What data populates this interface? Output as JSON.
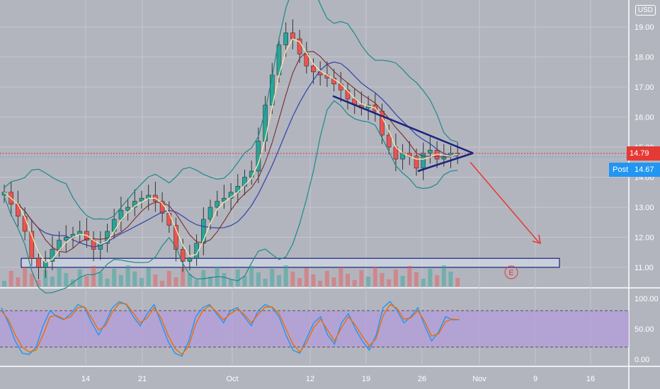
{
  "currency": "USD",
  "price_tags": {
    "last": "14.79",
    "post_label": "Post",
    "post_value": "14.67"
  },
  "earnings_marker": "E",
  "colors": {
    "background": "#b2b5be",
    "grid": "#c4c7ce",
    "bull": "#26a69a",
    "bear": "#ef5350",
    "bollinger": "#1b8a8a",
    "ma_fast": "#f3e5ab",
    "ma_slow": "#3949ab",
    "ma_mid": "#7a2e2e",
    "trendline": "#1a237e",
    "arrow": "#e53935",
    "stoch_band": "#b39ddb",
    "stoch_k": "#2196f3",
    "stoch_d": "#ef6c00",
    "last_price": "#e53935",
    "post_price": "#2196f3"
  },
  "chart_data": [
    {
      "type": "candlestick",
      "title": "",
      "ylabel": "",
      "ylim": [
        10.6,
        19.4
      ],
      "y_ticks": [
        "11.00",
        "12.00",
        "13.00",
        "14.00",
        "15.00",
        "16.00",
        "17.00",
        "18.00",
        "19.00"
      ],
      "x_ticks": [
        "14",
        "21",
        "Oct",
        "12",
        "19",
        "26",
        "Nov",
        "9",
        "16"
      ],
      "close_series": [
        13.5,
        13.1,
        12.7,
        12.2,
        11.3,
        11.0,
        11.2,
        11.6,
        11.9,
        12.0,
        12.1,
        12.2,
        11.9,
        11.6,
        11.8,
        12.2,
        12.6,
        12.9,
        13.0,
        13.2,
        13.3,
        13.4,
        13.2,
        12.8,
        12.4,
        11.6,
        11.2,
        11.3,
        11.8,
        12.6,
        13.0,
        13.2,
        13.3,
        13.5,
        13.7,
        14.0,
        14.2,
        15.2,
        16.4,
        17.4,
        18.4,
        18.8,
        18.6,
        18.1,
        17.7,
        17.5,
        17.4,
        17.3,
        17.1,
        16.9,
        16.6,
        16.4,
        16.3,
        16.4,
        16.2,
        15.4,
        15.0,
        14.6,
        14.8,
        14.7,
        14.3,
        14.8,
        14.9,
        14.6,
        14.7,
        14.8,
        14.79
      ],
      "key_levels": {
        "support_zone": [
          11.0,
          11.3
        ],
        "last_price": 14.79,
        "post_market_price": 14.67
      },
      "pattern": "symmetrical triangle",
      "arrow_target": 11.8,
      "legend": "none",
      "grid": true
    },
    {
      "type": "line",
      "title": "",
      "ylabel": "",
      "ylim": [
        -10,
        110
      ],
      "y_ticks": [
        "100.00",
        "50.00",
        "0.00"
      ],
      "band": [
        20,
        80
      ],
      "series": [
        {
          "values": [
            85,
            60,
            30,
            10,
            8,
            20,
            55,
            80,
            70,
            65,
            75,
            90,
            85,
            60,
            40,
            60,
            85,
            95,
            90,
            70,
            55,
            75,
            90,
            60,
            30,
            10,
            5,
            30,
            70,
            85,
            90,
            75,
            60,
            80,
            85,
            70,
            55,
            80,
            90,
            85,
            70,
            40,
            15,
            10,
            35,
            60,
            70,
            40,
            25,
            60,
            75,
            50,
            30,
            15,
            40,
            85,
            95,
            80,
            60,
            70,
            85,
            55,
            30,
            45,
            70,
            65,
            65
          ]
        },
        {
          "values": [
            80,
            65,
            40,
            20,
            12,
            15,
            40,
            70,
            72,
            66,
            70,
            85,
            86,
            68,
            48,
            55,
            78,
            92,
            91,
            76,
            60,
            68,
            85,
            68,
            40,
            18,
            8,
            22,
            58,
            80,
            88,
            78,
            65,
            75,
            82,
            74,
            60,
            74,
            86,
            86,
            75,
            50,
            25,
            12,
            28,
            52,
            66,
            48,
            30,
            52,
            70,
            56,
            38,
            22,
            34,
            72,
            90,
            84,
            66,
            68,
            80,
            62,
            38,
            42,
            62,
            66,
            65
          ]
        }
      ],
      "legend": "none",
      "grid": true
    }
  ]
}
